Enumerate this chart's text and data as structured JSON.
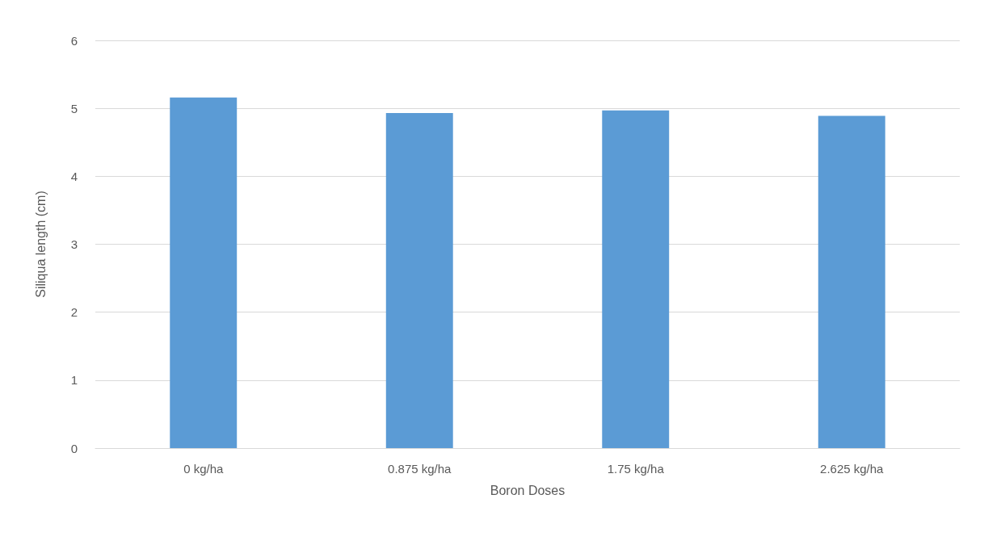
{
  "chart_data": {
    "type": "bar",
    "xlabel": "Boron Doses",
    "ylabel": "Siliqua length (cm)",
    "categories": [
      "0 kg/ha",
      "0.875 kg/ha",
      "1.75 kg/ha",
      "2.625 kg/ha"
    ],
    "values": [
      5.16,
      4.93,
      4.97,
      4.89
    ],
    "color": "#5b9bd5",
    "ylim": [
      0,
      6
    ],
    "yticks": [
      0,
      1,
      2,
      3,
      4,
      5,
      6
    ],
    "grid": "y"
  }
}
